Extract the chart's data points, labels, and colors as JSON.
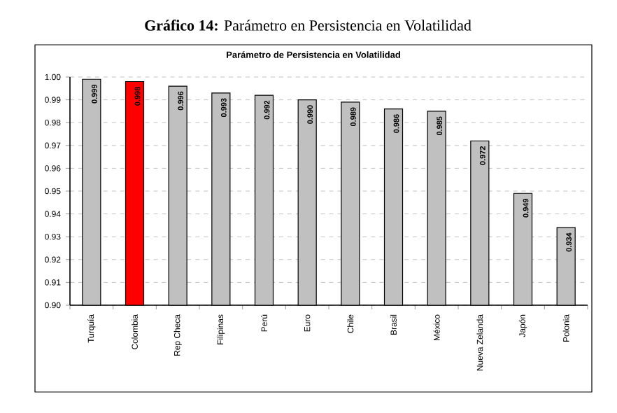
{
  "chart_data": {
    "type": "bar",
    "title": "**Gráfico 14:** Parámetro en Persistencia en Volatilidad",
    "subtitle": "Parámetro de Persistencia en Volatilidad",
    "categories": [
      "Turquía",
      "Colombia",
      "Rep Checa",
      "Filipinas",
      "Perú",
      "Euro",
      "Chile",
      "Brasil",
      "México",
      "Nueva Zelanda",
      "Japón",
      "Polonia"
    ],
    "values": [
      0.999,
      0.998,
      0.996,
      0.993,
      0.992,
      0.99,
      0.989,
      0.986,
      0.985,
      0.972,
      0.949,
      0.934
    ],
    "colors": [
      "#c0c0c0",
      "#ff0000",
      "#c0c0c0",
      "#c0c0c0",
      "#c0c0c0",
      "#c0c0c0",
      "#c0c0c0",
      "#c0c0c0",
      "#c0c0c0",
      "#c0c0c0",
      "#c0c0c0",
      "#c0c0c0"
    ],
    "ylim": [
      0.9,
      1.0
    ],
    "yticks": [
      {
        "value": 0.9,
        "label": "0.90"
      },
      {
        "value": 0.91,
        "label": "0.91"
      },
      {
        "value": 0.92,
        "label": "0.92"
      },
      {
        "value": 0.93,
        "label": "0.93"
      },
      {
        "value": 0.94,
        "label": "0.94"
      },
      {
        "value": 0.95,
        "label": "0.95"
      },
      {
        "value": 0.96,
        "label": "0.96"
      },
      {
        "value": 0.97,
        "label": "0.97"
      },
      {
        "value": 0.98,
        "label": "0.98"
      },
      {
        "value": 0.99,
        "label": "0.99"
      },
      {
        "value": 1.0,
        "label": "1.00"
      }
    ],
    "value_labels": [
      "0.999",
      "0.998",
      "0.996",
      "0.993",
      "0.992",
      "0.990",
      "0.989",
      "0.986",
      "0.985",
      "0.972",
      "0.949",
      "0.934"
    ],
    "grid": "y"
  }
}
